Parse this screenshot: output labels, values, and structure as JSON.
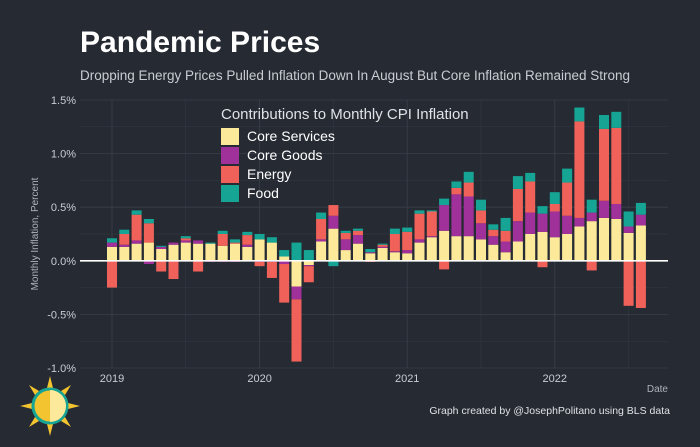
{
  "title": "Pandemic Prices",
  "subtitle": "Dropping Energy Prices Pulled Inflation Down In August But Core Inflation Remained Strong",
  "credit": "Graph created by @JosephPolitano using BLS data",
  "colors": {
    "background": "#252a33",
    "grid": "#3a404a",
    "zero_line": "#ffffff",
    "core_services": "#fde99a",
    "core_goods": "#a0309a",
    "energy": "#f0615a",
    "food": "#16a594"
  },
  "chart_data": {
    "type": "bar",
    "stacked": true,
    "title": "Contributions to Monthly CPI Inflation",
    "xlabel": "Date",
    "ylabel": "Monthly Inflation, Percent",
    "ylim": [
      -1.0,
      1.5
    ],
    "yticks": [
      -1.0,
      -0.5,
      0.0,
      0.5,
      1.0,
      1.5
    ],
    "ytick_labels": [
      "-1.0%",
      "-0.5%",
      "0.0%",
      "0.5%",
      "1.0%",
      "1.5%"
    ],
    "xticks": [
      "2019",
      "2020",
      "2021",
      "2022"
    ],
    "grid": true,
    "legend_position": "top-center",
    "categories": [
      "2019-01",
      "2019-02",
      "2019-03",
      "2019-04",
      "2019-05",
      "2019-06",
      "2019-07",
      "2019-08",
      "2019-09",
      "2019-10",
      "2019-11",
      "2019-12",
      "2020-01",
      "2020-02",
      "2020-03",
      "2020-04",
      "2020-05",
      "2020-06",
      "2020-07",
      "2020-08",
      "2020-09",
      "2020-10",
      "2020-11",
      "2020-12",
      "2021-01",
      "2021-02",
      "2021-03",
      "2021-04",
      "2021-05",
      "2021-06",
      "2021-07",
      "2021-08",
      "2021-09",
      "2021-10",
      "2021-11",
      "2021-12",
      "2022-01",
      "2022-02",
      "2022-03",
      "2022-04",
      "2022-05",
      "2022-06",
      "2022-07",
      "2022-08"
    ],
    "series": [
      {
        "name": "Core Services",
        "color": "#fde99a",
        "values": [
          0.13,
          0.13,
          0.16,
          0.17,
          0.11,
          0.15,
          0.17,
          0.16,
          0.16,
          0.14,
          0.16,
          0.13,
          0.2,
          0.17,
          0.04,
          -0.24,
          -0.04,
          0.18,
          0.3,
          0.1,
          0.16,
          0.07,
          0.12,
          0.08,
          0.07,
          0.17,
          0.22,
          0.28,
          0.23,
          0.23,
          0.2,
          0.15,
          0.08,
          0.18,
          0.25,
          0.27,
          0.22,
          0.25,
          0.32,
          0.37,
          0.4,
          0.39,
          0.26,
          0.33
        ]
      },
      {
        "name": "Core Goods",
        "color": "#a0309a",
        "values": [
          0.04,
          0.02,
          0.03,
          -0.03,
          0.02,
          0.02,
          0.02,
          0.03,
          -0.01,
          -0.01,
          -0.01,
          0.02,
          -0.01,
          -0.01,
          -0.03,
          -0.12,
          -0.01,
          0.02,
          0.12,
          0.1,
          0.08,
          0.01,
          0.01,
          0.01,
          0.03,
          0.03,
          0.01,
          0.24,
          0.39,
          0.37,
          0.15,
          0.08,
          0.1,
          0.19,
          0.2,
          0.17,
          0.24,
          0.17,
          0.08,
          0.08,
          0.16,
          0.14,
          0.06,
          0.1
        ]
      },
      {
        "name": "Energy",
        "color": "#f0615a",
        "values": [
          -0.25,
          0.1,
          0.24,
          0.18,
          -0.1,
          -0.17,
          0.02,
          -0.1,
          0.0,
          0.11,
          0.01,
          0.09,
          -0.04,
          -0.15,
          -0.36,
          -0.58,
          -0.15,
          0.19,
          0.1,
          0.06,
          0.04,
          -0.01,
          0.02,
          0.16,
          0.17,
          0.24,
          0.23,
          -0.08,
          0.06,
          0.13,
          0.12,
          0.06,
          0.1,
          0.3,
          0.29,
          -0.06,
          0.07,
          0.31,
          0.9,
          -0.09,
          0.67,
          0.71,
          -0.42,
          -0.44
        ]
      },
      {
        "name": "Food",
        "color": "#16a594",
        "values": [
          0.04,
          0.04,
          0.04,
          0.04,
          0.01,
          0.0,
          0.02,
          0.0,
          0.01,
          0.03,
          0.03,
          0.03,
          0.05,
          0.05,
          0.06,
          0.17,
          0.1,
          0.06,
          -0.05,
          0.02,
          0.02,
          0.03,
          0.01,
          0.05,
          0.04,
          0.03,
          0.01,
          0.06,
          0.06,
          0.1,
          0.1,
          0.05,
          0.12,
          0.12,
          0.08,
          0.07,
          0.11,
          0.13,
          0.13,
          0.12,
          0.13,
          0.15,
          0.14,
          0.11
        ]
      }
    ]
  }
}
